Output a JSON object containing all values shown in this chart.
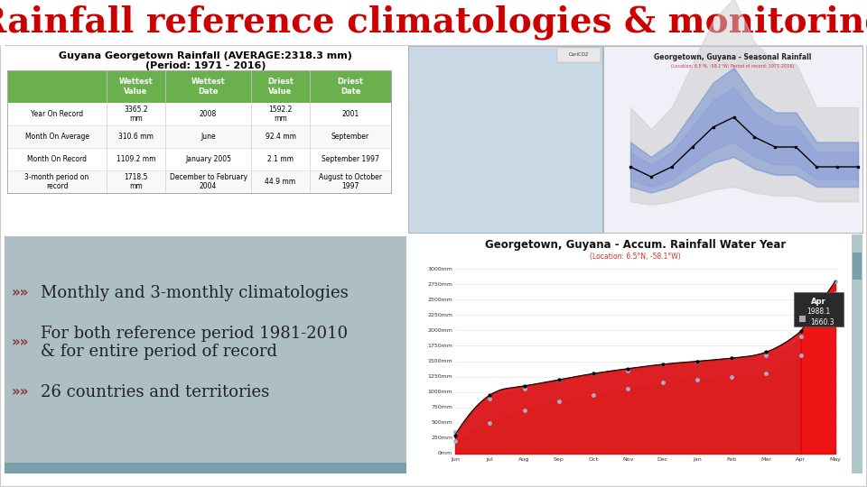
{
  "title": "Rainfall reference climatologies & monitoring",
  "title_color": "#cc0000",
  "title_fontsize": 28,
  "bg_color": "#ffffff",
  "left_panel_title_line1": "Guyana Georgetown Rainfall (AVERAGE:2318.3 mm)",
  "left_panel_title_line2": "(Period: 1971 - 2016)",
  "table_header_bg": "#6ab04c",
  "table_header_color": "#ffffff",
  "table_headers": [
    "",
    "Wettest\nValue",
    "Wettest\nDate",
    "Driest\nValue",
    "Driest\nDate"
  ],
  "table_rows": [
    [
      "Year On Record",
      "3365.2\nmm",
      "2008",
      "1592.2\nmm",
      "2001"
    ],
    [
      "Month On Average",
      "310.6 mm",
      "June",
      "92.4 mm",
      "September"
    ],
    [
      "Month On Record",
      "1109.2 mm",
      "January 2005",
      "2.1 mm",
      "September 1997"
    ],
    [
      "3-month period on\nrecord",
      "1718.5\nmm",
      "December to February\n2004",
      "44.9 mm",
      "August to October\n1997"
    ]
  ],
  "bullet_bg": "#adbfc4",
  "bullet_points": [
    "Monthly and 3-monthly climatologies",
    "For both reference period 1981-2010\n& for entire period of record",
    "26 countries and territories"
  ],
  "bullet_color": "#222222",
  "bottom_bar_color": "#7a9fa8",
  "accum_title": "Georgetown, Guyana - Accum. Rainfall Water Year",
  "accum_subtitle": "(Location: 6.5°N, -58.1°W)",
  "accum_ylabel_vals": [
    "0mm",
    "250mm",
    "500mm",
    "750mm",
    "1000mm",
    "1250mm",
    "1500mm",
    "1750mm",
    "2000mm",
    "2250mm",
    "2500mm",
    "2750mm",
    "3000mm"
  ],
  "accum_xmonths": [
    "Jun",
    "Jul",
    "Aug",
    "Sep",
    "Oct",
    "Nov",
    "Dec",
    "Jan",
    "Feb",
    "Mar",
    "Apr",
    "May"
  ],
  "tooltip_label": "Apr",
  "tooltip_v1": "1988.1",
  "tooltip_v2": "1660.3"
}
